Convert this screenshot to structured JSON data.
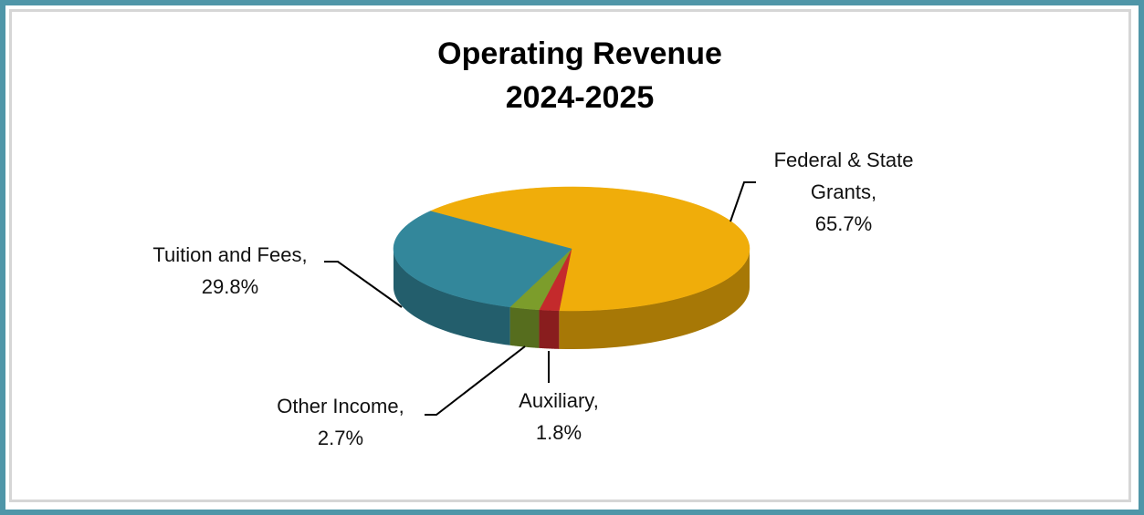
{
  "chart_data": {
    "type": "pie3d",
    "title": "Operating Revenue",
    "subtitle": "2024-2025",
    "categories": [
      "Federal & State Grants",
      "Auxiliary",
      "Other Income",
      "Tuition and Fees"
    ],
    "values": [
      65.7,
      1.8,
      2.7,
      29.8
    ],
    "value_labels": [
      "65.7%",
      "1.8%",
      "2.7%",
      "29.8%"
    ],
    "label_separator": ",",
    "colors": [
      "#f0ad0a",
      "#c42a2c",
      "#7c9d2b",
      "#33879b"
    ]
  }
}
